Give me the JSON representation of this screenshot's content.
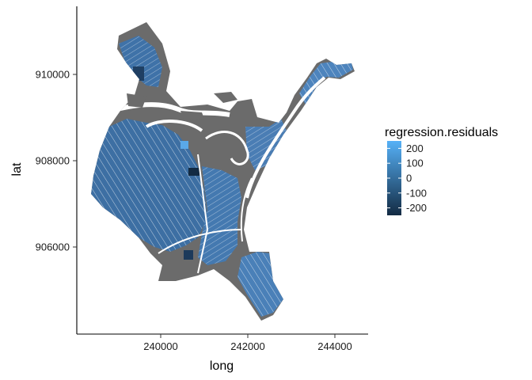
{
  "chart_data": {
    "type": "choropleth-map",
    "title": "",
    "xlabel": "long",
    "ylabel": "lat",
    "xlim": [
      238200,
      244800
    ],
    "ylim": [
      904200,
      911600
    ],
    "x_ticks": [
      240000,
      242000,
      244000
    ],
    "x_tick_labels": [
      "240000",
      "242000",
      "244000"
    ],
    "y_ticks": [
      906000,
      908000,
      910000
    ],
    "y_tick_labels": [
      "906000",
      "908000",
      "910000"
    ],
    "grid": false,
    "missing_color": "#6b6b6b",
    "fill_variable": "regression.residuals",
    "legend": {
      "title": "regression.residuals",
      "position": "right",
      "values": [
        200,
        100,
        0,
        -100,
        -200
      ],
      "labels": [
        "200",
        "100",
        "0",
        "-100",
        "-200"
      ],
      "color_low": "#132b43",
      "color_high": "#56b1f7",
      "range": [
        -250,
        250
      ]
    }
  }
}
